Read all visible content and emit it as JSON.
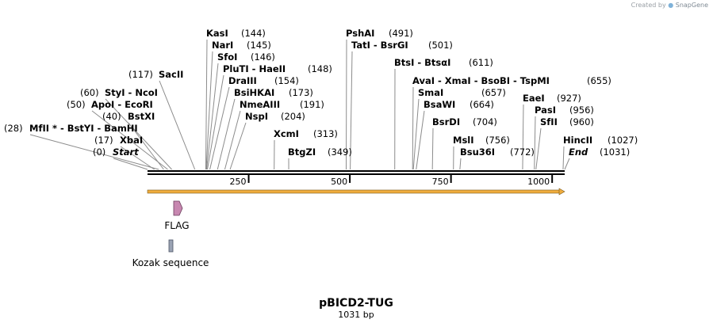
{
  "credit": {
    "created_by": "Created by",
    "brand": "SnapGene"
  },
  "plasmid": {
    "name": "pBICD2-TUG",
    "length_label": "1031 bp",
    "length": 1031
  },
  "sites": [
    {
      "name": "Start",
      "pos": 0,
      "pos_label": "(0)",
      "italic": true
    },
    {
      "name": "XbaI",
      "pos": 17,
      "pos_label": "(17)"
    },
    {
      "name": "MfII * - BstYI - BamHI",
      "pos": 28,
      "pos_label": "(28)"
    },
    {
      "name": "BstXI",
      "pos": 40,
      "pos_label": "(40)"
    },
    {
      "name": "ApoI - EcoRI",
      "pos": 50,
      "pos_label": "(50)"
    },
    {
      "name": "StyI - NcoI",
      "pos": 60,
      "pos_label": "(60)"
    },
    {
      "name": "SacII",
      "pos": 117,
      "pos_label": "(117)"
    },
    {
      "name": "KasI",
      "pos": 144,
      "pos_label": "(144)"
    },
    {
      "name": "NarI",
      "pos": 145,
      "pos_label": "(145)"
    },
    {
      "name": "SfoI",
      "pos": 146,
      "pos_label": "(146)"
    },
    {
      "name": "PluTI - HaeII",
      "pos": 148,
      "pos_label": "(148)"
    },
    {
      "name": "DraIII",
      "pos": 154,
      "pos_label": "(154)"
    },
    {
      "name": "BsiHKAI",
      "pos": 173,
      "pos_label": "(173)"
    },
    {
      "name": "NmeAIII",
      "pos": 191,
      "pos_label": "(191)"
    },
    {
      "name": "NspI",
      "pos": 204,
      "pos_label": "(204)"
    },
    {
      "name": "XcmI",
      "pos": 313,
      "pos_label": "(313)"
    },
    {
      "name": "BtgZI",
      "pos": 349,
      "pos_label": "(349)"
    },
    {
      "name": "PshAI",
      "pos": 491,
      "pos_label": "(491)"
    },
    {
      "name": "TatI - BsrGI",
      "pos": 501,
      "pos_label": "(501)"
    },
    {
      "name": "BtsI - BtsαI",
      "pos": 611,
      "pos_label": "(611)"
    },
    {
      "name": "AvaI - XmaI - BsoBI - TspMI",
      "pos": 655,
      "pos_label": "(655)"
    },
    {
      "name": "SmaI",
      "pos": 657,
      "pos_label": "(657)"
    },
    {
      "name": "BsaWI",
      "pos": 664,
      "pos_label": "(664)"
    },
    {
      "name": "BsrDI",
      "pos": 704,
      "pos_label": "(704)"
    },
    {
      "name": "MslI",
      "pos": 756,
      "pos_label": "(756)"
    },
    {
      "name": "Bsu36I",
      "pos": 772,
      "pos_label": "(772)"
    },
    {
      "name": "EaeI",
      "pos": 927,
      "pos_label": "(927)"
    },
    {
      "name": "PasI",
      "pos": 956,
      "pos_label": "(956)"
    },
    {
      "name": "SfII",
      "pos": 960,
      "pos_label": "(960)"
    },
    {
      "name": "HincII",
      "pos": 1027,
      "pos_label": "(1027)"
    },
    {
      "name": "End",
      "pos": 1031,
      "pos_label": "(1031)",
      "italic": true
    }
  ],
  "ruler_ticks": [
    {
      "value": 250,
      "label": "250"
    },
    {
      "value": 500,
      "label": "500"
    },
    {
      "value": 750,
      "label": "750"
    },
    {
      "value": 1000,
      "label": "1000"
    }
  ],
  "orf": {
    "start": 1,
    "end": 1031,
    "color": "#f0ac3c"
  },
  "features": [
    {
      "name": "FLAG",
      "start": 68,
      "end": 91,
      "color": "#c787b0",
      "shape": "arrow"
    },
    {
      "name": "Kozak sequence",
      "start": 56,
      "end": 65,
      "color": "#9aa3b4",
      "shape": "box"
    }
  ],
  "colors": {
    "backbone": "#000000",
    "label_line": "#8c8c8c"
  }
}
